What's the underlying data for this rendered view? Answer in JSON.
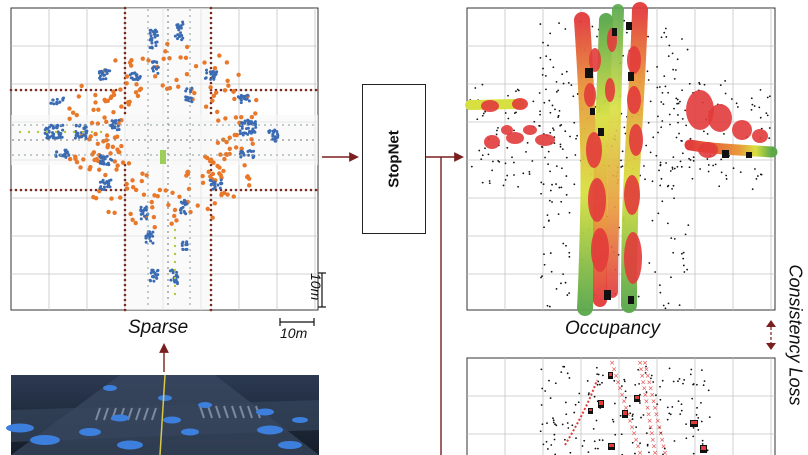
{
  "labels": {
    "sparse": "Sparse",
    "stopnet": "StopNet",
    "occupancy": "Occupancy",
    "consistency": "Consistency Loss",
    "scale_vertical": "10m",
    "scale_horizontal": "10m"
  },
  "colors": {
    "arrow": "#7a1f1f",
    "grid": "#bbbbbb",
    "vehicle": "#3a6bb3",
    "pedestrian": "#e8782a",
    "road_edge": "#7a2a1e",
    "occupancy_red": "#e23b3b",
    "occupancy_yellow": "#d8e040",
    "occupancy_green": "#5aa84a",
    "scene_bg": "#1b2535"
  }
}
